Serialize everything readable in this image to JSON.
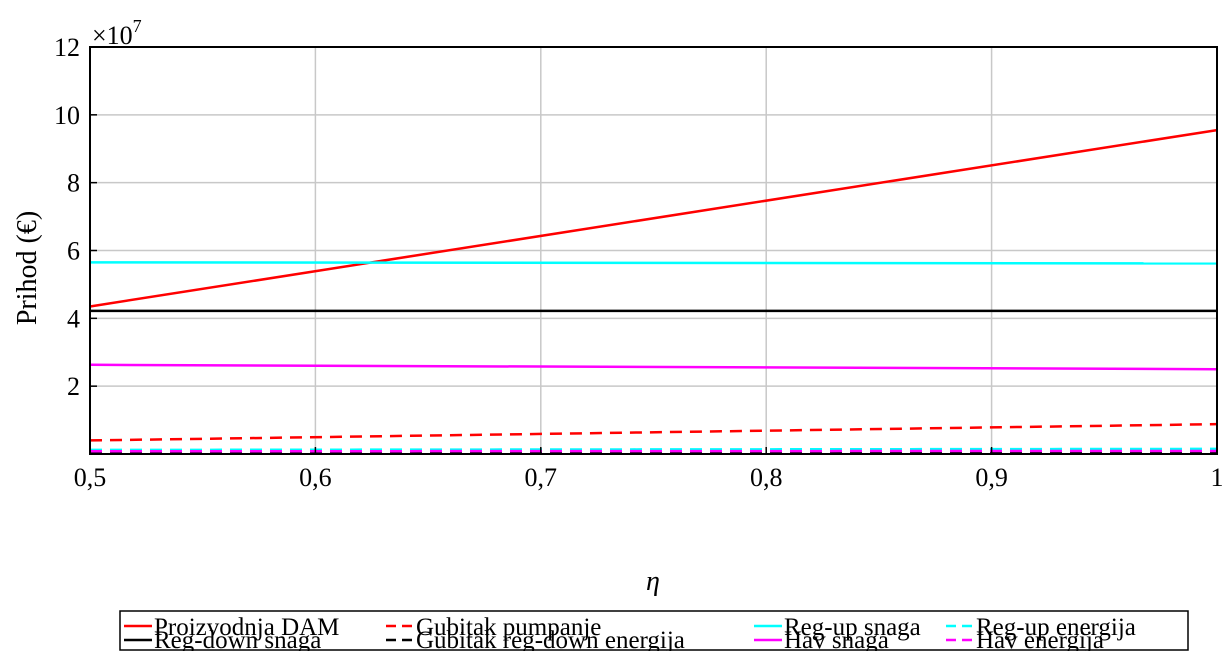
{
  "chart_data": {
    "type": "line",
    "xlabel": "η",
    "ylabel": "Prihod (€)",
    "y_multiplier_label": "×10",
    "y_multiplier_exponent": "7",
    "xlim": [
      0.5,
      1.0
    ],
    "ylim": [
      0,
      12
    ],
    "x_ticks": [
      0.5,
      0.6,
      0.7,
      0.8,
      0.9,
      1.0
    ],
    "x_tick_labels": [
      "0,5",
      "0,6",
      "0,7",
      "0,8",
      "0,9",
      "1"
    ],
    "y_ticks": [
      2,
      4,
      6,
      8,
      10,
      12
    ],
    "y_tick_labels": [
      "2",
      "4",
      "6",
      "8",
      "10",
      "12"
    ],
    "grid": true,
    "legend_position": "bottom",
    "x": [
      0.5,
      1.0
    ],
    "series": [
      {
        "name": "Proizvodnja DAM",
        "color": "#ff0000",
        "dash": "solid",
        "values": [
          4.35,
          9.55
        ]
      },
      {
        "name": "Gubitak pumpanje",
        "color": "#ff0000",
        "dash": "dashed",
        "values": [
          0.4,
          0.88
        ]
      },
      {
        "name": "Reg-up snaga",
        "color": "#00ffff",
        "dash": "solid",
        "values": [
          5.65,
          5.62
        ]
      },
      {
        "name": "Reg-up energija",
        "color": "#00ffff",
        "dash": "dashed",
        "values": [
          0.12,
          0.15
        ]
      },
      {
        "name": "Reg-down snaga",
        "color": "#000000",
        "dash": "solid",
        "values": [
          4.22,
          4.22
        ]
      },
      {
        "name": "Gubitak reg-down energija",
        "color": "#000000",
        "dash": "dashed",
        "values": [
          0.04,
          0.04
        ]
      },
      {
        "name": "Hav snaga",
        "color": "#ff00ff",
        "dash": "solid",
        "values": [
          2.63,
          2.5
        ]
      },
      {
        "name": "Hav energija",
        "color": "#ff00ff",
        "dash": "dashed",
        "values": [
          0.08,
          0.09
        ]
      }
    ]
  }
}
